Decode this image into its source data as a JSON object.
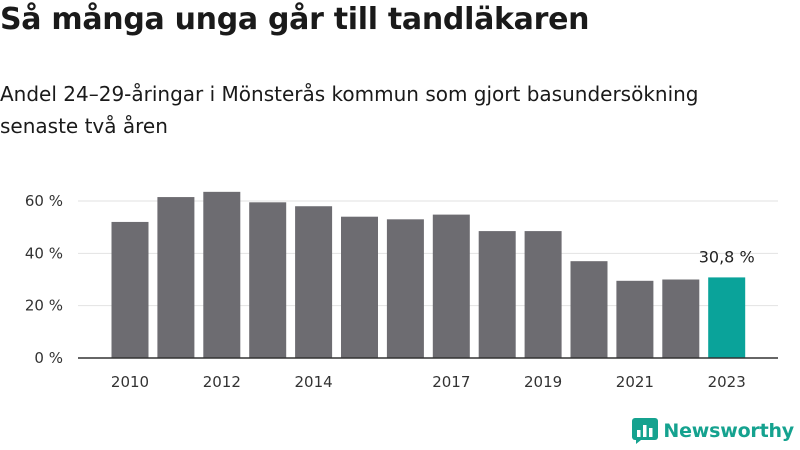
{
  "title": "Så många unga går till tandläkaren",
  "subtitle": "Andel 24–29-åringar i Mönsterås kommun som gjort basundersökning senaste två åren",
  "brand": {
    "name": "Newsworthy",
    "color": "#15a28f",
    "icon": "bar-chart-logo-icon"
  },
  "chart_data": {
    "type": "bar",
    "categories": [
      "2010",
      "2011",
      "2012",
      "2013",
      "2014",
      "2015",
      "2016",
      "2017",
      "2018",
      "2019",
      "2020",
      "2021",
      "2022",
      "2023"
    ],
    "values": [
      52.0,
      61.5,
      63.5,
      59.5,
      58.0,
      54.0,
      53.0,
      54.8,
      48.5,
      48.5,
      37.0,
      29.5,
      30.0,
      30.8
    ],
    "x_tick_labels": [
      "2010",
      "",
      "2012",
      "",
      "2014",
      "",
      "",
      "2017",
      "",
      "2019",
      "",
      "2021",
      "",
      "2023"
    ],
    "y_ticks": [
      0,
      20,
      40,
      60
    ],
    "y_tick_labels": [
      "0 %",
      "20 %",
      "40 %",
      "60 %"
    ],
    "ylim": [
      0,
      60
    ],
    "bar_color": "#6d6c71",
    "highlight_color": "#0aa39a",
    "highlight_index": 13,
    "annotation": {
      "index": 13,
      "text": "30,8 %"
    },
    "grid": true
  }
}
